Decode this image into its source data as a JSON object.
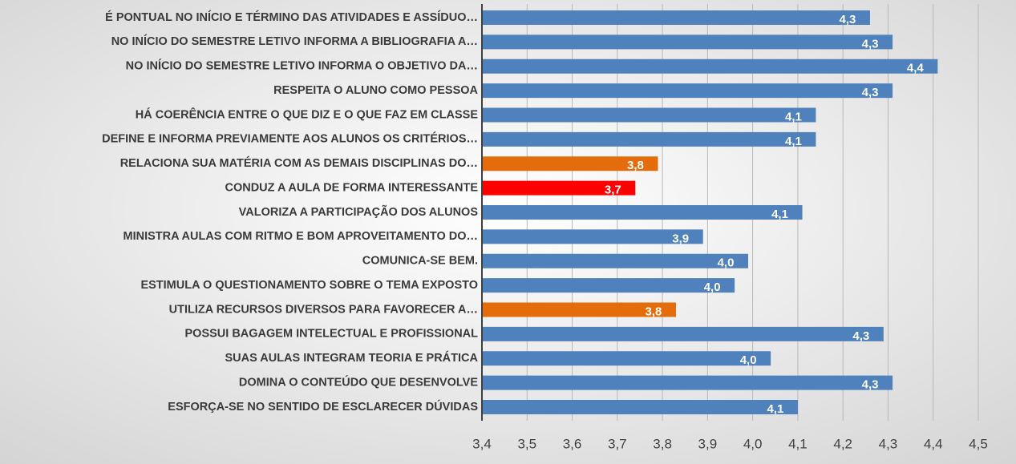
{
  "chart_data": {
    "type": "bar",
    "orientation": "horizontal",
    "categories": [
      "É PONTUAL NO INÍCIO E TÉRMINO DAS ATIVIDADES E ASSÍDUO…",
      "NO INÍCIO DO SEMESTRE LETIVO INFORMA A BIBLIOGRAFIA A…",
      "NO INÍCIO DO SEMESTRE LETIVO INFORMA O OBJETIVO DA…",
      "RESPEITA O ALUNO COMO PESSOA",
      "HÁ COERÊNCIA ENTRE O QUE DIZ E O QUE FAZ EM CLASSE",
      "DEFINE E INFORMA PREVIAMENTE AOS ALUNOS OS CRITÉRIOS…",
      "RELACIONA SUA MATÉRIA COM AS DEMAIS DISCIPLINAS DO…",
      "CONDUZ A AULA DE FORMA INTERESSANTE",
      "VALORIZA A PARTICIPAÇÃO DOS ALUNOS",
      "MINISTRA AULAS COM RITMO E BOM APROVEITAMENTO DO…",
      "COMUNICA-SE BEM.",
      "ESTIMULA O QUESTIONAMENTO SOBRE O TEMA EXPOSTO",
      "UTILIZA RECURSOS DIVERSOS PARA FAVORECER A…",
      "POSSUI BAGAGEM INTELECTUAL E PROFISSIONAL",
      "SUAS AULAS INTEGRAM TEORIA E PRÁTICA",
      "DOMINA O CONTEÚDO QUE DESENVOLVE",
      "ESFORÇA-SE NO SENTIDO DE ESCLARECER DÚVIDAS"
    ],
    "values": [
      4.26,
      4.31,
      4.41,
      4.31,
      4.14,
      4.14,
      3.79,
      3.74,
      4.11,
      3.89,
      3.99,
      3.96,
      3.83,
      4.29,
      4.04,
      4.31,
      4.1
    ],
    "value_labels": [
      "4,3",
      "4,3",
      "4,4",
      "4,3",
      "4,1",
      "4,1",
      "3,8",
      "3,7",
      "4,1",
      "3,9",
      "4,0",
      "4,0",
      "3,8",
      "4,3",
      "4,0",
      "4,3",
      "4,1"
    ],
    "colors": [
      "#4f81bd",
      "#4f81bd",
      "#4f81bd",
      "#4f81bd",
      "#4f81bd",
      "#4f81bd",
      "#e46c0a",
      "#ff0000",
      "#4f81bd",
      "#4f81bd",
      "#4f81bd",
      "#4f81bd",
      "#e46c0a",
      "#4f81bd",
      "#4f81bd",
      "#4f81bd",
      "#4f81bd"
    ],
    "xlim": [
      3.4,
      4.5
    ],
    "xticks": [
      {
        "value": 3.4,
        "label": "3,4"
      },
      {
        "value": 3.5,
        "label": "3,5"
      },
      {
        "value": 3.6,
        "label": "3,6"
      },
      {
        "value": 3.7,
        "label": "3,7"
      },
      {
        "value": 3.8,
        "label": "3,8"
      },
      {
        "value": 3.9,
        "label": "3,9"
      },
      {
        "value": 4.0,
        "label": "4,0"
      },
      {
        "value": 4.1,
        "label": "4,1"
      },
      {
        "value": 4.2,
        "label": "4,2"
      },
      {
        "value": 4.3,
        "label": "4,3"
      },
      {
        "value": 4.4,
        "label": "4,4"
      },
      {
        "value": 4.5,
        "label": "4,5"
      }
    ],
    "grid": true
  }
}
